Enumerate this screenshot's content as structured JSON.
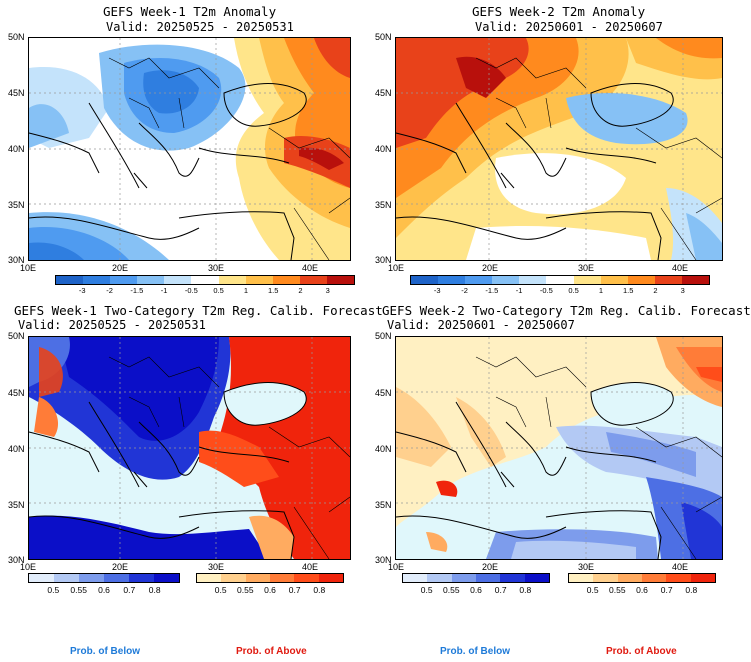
{
  "panels": [
    {
      "title": "GEFS Week-1 T2m Anomaly",
      "valid": "Valid: 20250525 - 20250531"
    },
    {
      "title": "GEFS Week-2 T2m Anomaly",
      "valid": "Valid: 20250601 - 20250607"
    },
    {
      "title": "GEFS Week-1 Two-Category T2m Reg. Calib. Forecast",
      "valid": "Valid: 20250525 - 20250531"
    },
    {
      "title": "GEFS Week-2 Two-Category T2m Reg. Calib. Forecast",
      "valid": "Valid: 20250601 - 20250607"
    }
  ],
  "lat_labels": [
    "50N",
    "45N",
    "40N",
    "35N",
    "30N"
  ],
  "lon_labels": [
    "10E",
    "20E",
    "30E",
    "40E"
  ],
  "anomaly_colorbar": {
    "ticks": [
      "-3",
      "-2",
      "-1.5",
      "-1",
      "-0.5",
      "0.5",
      "1",
      "1.5",
      "2",
      "3"
    ],
    "colors": [
      "#1e63c8",
      "#2f7ee0",
      "#4f9bf0",
      "#86c1f5",
      "#c4e3fb",
      "#ffffff",
      "#ffe58a",
      "#ffc04a",
      "#ff8a1e",
      "#e8421a",
      "#b8100c"
    ]
  },
  "prob_colorbars": {
    "below": {
      "ticks": [
        "0.5",
        "0.55",
        "0.6",
        "0.7",
        "0.8"
      ],
      "colors": [
        "#e2edfb",
        "#b3c9f4",
        "#7d9cec",
        "#4d6fe4",
        "#2135d6",
        "#0b0fc8"
      ],
      "label": "Prob. of Below",
      "color": "#1e7ad8"
    },
    "above": {
      "ticks": [
        "0.5",
        "0.55",
        "0.6",
        "0.7",
        "0.8"
      ],
      "colors": [
        "#fff0c2",
        "#ffd08e",
        "#ffab60",
        "#ff7c38",
        "#ff4d1a",
        "#f0240c"
      ],
      "label": "Prob. of Above",
      "color": "#e01a10"
    }
  }
}
